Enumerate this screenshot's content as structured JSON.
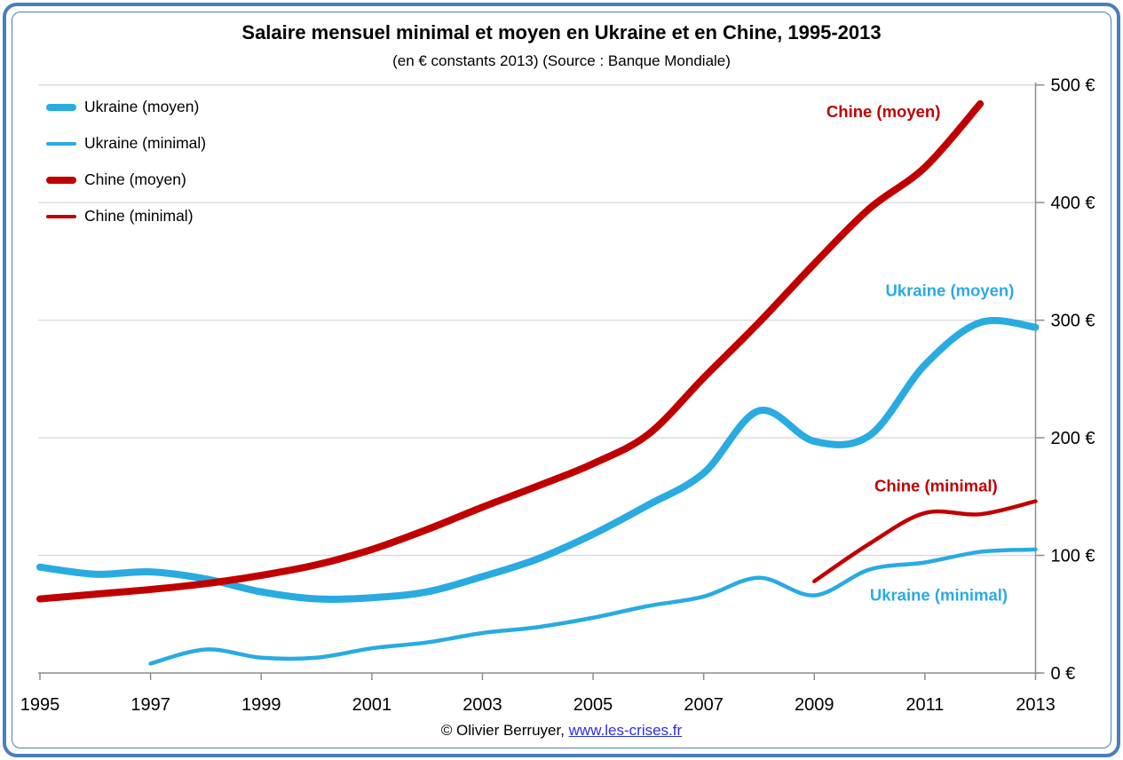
{
  "title": "Salaire mensuel minimal et moyen en Ukraine et en Chine, 1995-2013",
  "subtitle": "(en € constants 2013) (Source : Banque Mondiale)",
  "footer": {
    "credit": "© Olivier Berruyer, ",
    "link": "www.les-crises.fr"
  },
  "colors": {
    "ukraine": "#29ABE1",
    "chine": "#C00000",
    "grid": "#D9D9D9",
    "axis": "#8E8E8E",
    "frame": "#4A7EBD",
    "link": "#2E2EE0",
    "text": "#000000"
  },
  "legend": [
    {
      "label": "Ukraine (moyen)",
      "color": "#29ABE1",
      "thick": true
    },
    {
      "label": "Ukraine (minimal)",
      "color": "#29ABE1",
      "thick": false
    },
    {
      "label": "Chine (moyen)",
      "color": "#C00000",
      "thick": true
    },
    {
      "label": "Chine (minimal)",
      "color": "#C00000",
      "thick": false
    }
  ],
  "chart_data": {
    "type": "line",
    "title": "Salaire mensuel minimal et moyen en Ukraine et en Chine, 1995-2013",
    "subtitle": "(en € constants 2013) (Source : Banque Mondiale)",
    "xlim": [
      1995,
      2013
    ],
    "ylim": [
      0,
      500
    ],
    "grid": true,
    "legend_position": "top-left",
    "x_ticks": [
      1995,
      1997,
      1999,
      2001,
      2003,
      2005,
      2007,
      2009,
      2011,
      2013
    ],
    "y_ticks": [
      {
        "value": 0,
        "label": "0 €"
      },
      {
        "value": 100,
        "label": "100 €"
      },
      {
        "value": 200,
        "label": "200 €"
      },
      {
        "value": 300,
        "label": "300 €"
      },
      {
        "value": 400,
        "label": "400 €"
      },
      {
        "value": 500,
        "label": "500 €"
      }
    ],
    "series": [
      {
        "name": "Ukraine (moyen)",
        "key": "ukraine-moyen",
        "color": "#29ABE1",
        "width": 8,
        "x": [
          1995,
          1996,
          1997,
          1998,
          1999,
          2000,
          2001,
          2002,
          2003,
          2004,
          2005,
          2006,
          2007,
          2008,
          2009,
          2010,
          2011,
          2012,
          2013
        ],
        "values": [
          90,
          84,
          86,
          80,
          69,
          63,
          64,
          69,
          82,
          97,
          118,
          143,
          170,
          223,
          197,
          202,
          262,
          298,
          294
        ]
      },
      {
        "name": "Ukraine (minimal)",
        "key": "ukraine-minimal",
        "color": "#29ABE1",
        "width": 4.5,
        "x": [
          1997,
          1998,
          1999,
          2000,
          2001,
          2002,
          2003,
          2004,
          2005,
          2006,
          2007,
          2008,
          2009,
          2010,
          2011,
          2012,
          2013
        ],
        "values": [
          8,
          20,
          13,
          13,
          21,
          26,
          34,
          39,
          47,
          57,
          65,
          81,
          66,
          88,
          94,
          103,
          105
        ]
      },
      {
        "name": "Chine (moyen)",
        "key": "chine-moyen",
        "color": "#C00000",
        "width": 8,
        "x": [
          1995,
          1996,
          1997,
          1998,
          1999,
          2000,
          2001,
          2002,
          2003,
          2004,
          2005,
          2006,
          2007,
          2008,
          2009,
          2010,
          2011,
          2012
        ],
        "values": [
          63,
          67,
          71,
          76,
          83,
          92,
          105,
          122,
          141,
          159,
          178,
          203,
          251,
          298,
          348,
          395,
          430,
          484
        ]
      },
      {
        "name": "Chine (minimal)",
        "key": "chine-minimal",
        "color": "#C00000",
        "width": 4.5,
        "x": [
          2009,
          2010,
          2011,
          2012,
          2013
        ],
        "values": [
          78,
          110,
          136,
          135,
          146
        ]
      }
    ],
    "annotations": [
      {
        "text": "Chine (moyen)",
        "year": 2010.25,
        "value": 477,
        "color": "#C00000"
      },
      {
        "text": "Ukraine (moyen)",
        "year": 2011.45,
        "value": 325,
        "color": "#29ABE1"
      },
      {
        "text": "Chine (minimal)",
        "year": 2011.2,
        "value": 159,
        "color": "#C00000"
      },
      {
        "text": "Ukraine (minimal)",
        "year": 2011.25,
        "value": 66,
        "color": "#29ABE1"
      }
    ]
  }
}
